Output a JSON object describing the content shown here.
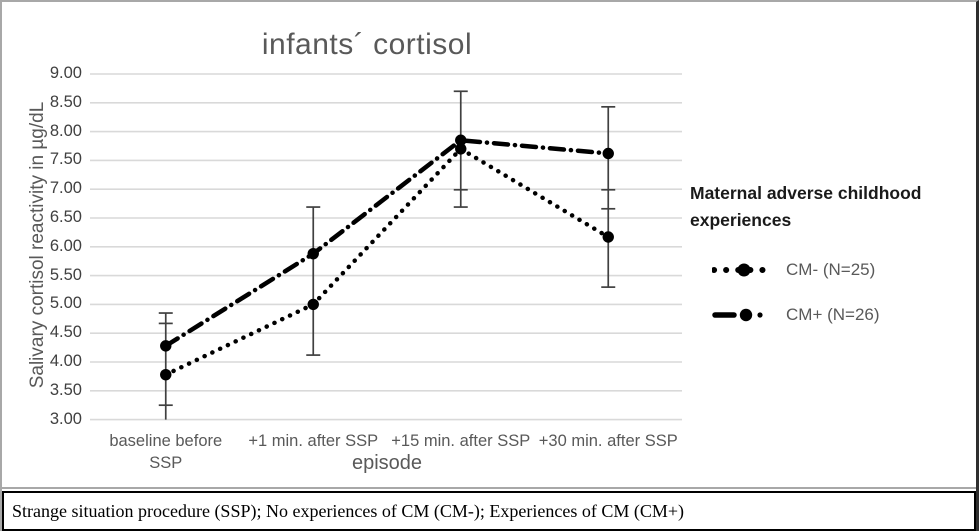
{
  "figure": {
    "caption": "Strange situation procedure (SSP); No experiences of CM (CM-); Experiences of CM (CM+)"
  },
  "chart_data": {
    "type": "line",
    "title": "infants´ cortisol",
    "xlabel": "episode",
    "ylabel": "Salivary cortisol reactivity in µg/dL",
    "ylim": [
      3.0,
      9.0
    ],
    "ytick_step": 0.5,
    "ytick_labels": [
      "9.00",
      "8.50",
      "8.00",
      "7.50",
      "7.00",
      "6.50",
      "6.00",
      "5.50",
      "5.00",
      "4.50",
      "4.00",
      "3.50",
      "3.00"
    ],
    "grid": true,
    "categories": [
      "baseline before SSP",
      "+1 min. after SSP",
      "+15 min. after SSP",
      "+30 min. after SSP"
    ],
    "series": [
      {
        "name": "CM- (N=25)",
        "line_style": "dotted",
        "color": "#000000",
        "values": [
          3.78,
          5.0,
          7.7,
          6.17
        ]
      },
      {
        "name": "CM+ (N=26)",
        "line_style": "dash-dot",
        "color": "#000000",
        "values": [
          4.28,
          5.88,
          7.85,
          7.62
        ]
      }
    ],
    "error_bars": {
      "color": "#404040",
      "note": "visible whisker lines and cap positions per category (series whiskers overlap on same x)",
      "per_category": [
        {
          "category_index": 0,
          "line": [
            3.0,
            4.85
          ],
          "caps": [
            4.85,
            4.67,
            3.25
          ]
        },
        {
          "category_index": 1,
          "line": [
            4.12,
            6.69
          ],
          "caps": [
            6.69,
            4.12
          ]
        },
        {
          "category_index": 2,
          "line": [
            6.69,
            8.7
          ],
          "caps": [
            8.7,
            6.99,
            6.69
          ]
        },
        {
          "category_index": 3,
          "line": [
            5.3,
            8.43
          ],
          "caps": [
            8.43,
            6.99,
            6.66,
            5.3
          ]
        }
      ]
    },
    "legend": {
      "title": "Maternal adverse childhood experiences",
      "position": "right",
      "entries": [
        {
          "label": "CM- (N=25)",
          "style": "dotted"
        },
        {
          "label": "CM+ (N=26)",
          "style": "dash-dot"
        }
      ]
    },
    "colors": {
      "title_text": "#595959",
      "axis_text": "#595959",
      "tick_text": "#404040",
      "gridline": "#d9d9d9",
      "series": "#000000",
      "error_bar": "#404040",
      "legend_title_text": "#1a1a1a",
      "legend_entry_text": "#595959"
    }
  }
}
